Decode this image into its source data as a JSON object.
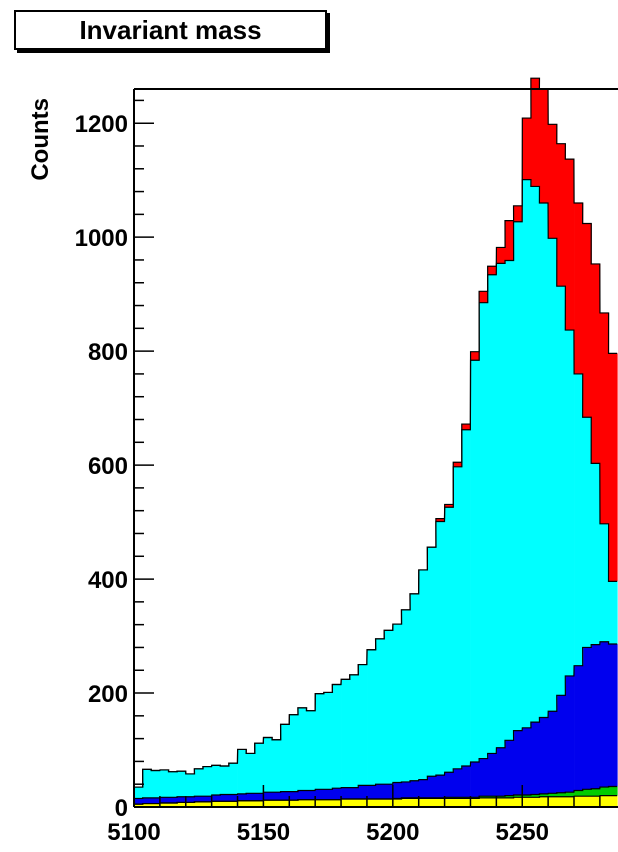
{
  "title": "Invariant mass",
  "chart_data": {
    "type": "area",
    "title": "Invariant mass",
    "xlabel": "",
    "ylabel": "Counts",
    "x_tick_labels": [
      "5100",
      "5150",
      "5200",
      "5250"
    ],
    "y_tick_labels": [
      "0",
      "200",
      "400",
      "600",
      "800",
      "1000",
      "1200"
    ],
    "xlim": [
      5100,
      5287
    ],
    "ylim": [
      0,
      1260
    ],
    "bin_width": 3.33,
    "x": [
      5101.7,
      5105.0,
      5108.3,
      5111.7,
      5115.0,
      5118.3,
      5121.7,
      5125.0,
      5128.3,
      5131.7,
      5135.0,
      5138.3,
      5141.7,
      5145.0,
      5148.3,
      5151.7,
      5155.0,
      5158.3,
      5161.7,
      5165.0,
      5168.3,
      5171.7,
      5175.0,
      5178.3,
      5181.7,
      5185.0,
      5188.3,
      5191.7,
      5195.0,
      5198.3,
      5201.7,
      5205.0,
      5208.3,
      5211.7,
      5215.0,
      5218.3,
      5221.7,
      5225.0,
      5228.3,
      5231.7,
      5235.0,
      5238.3,
      5241.7,
      5245.0,
      5248.3,
      5251.7,
      5255.0,
      5258.3,
      5261.7,
      5265.0,
      5268.3,
      5271.7,
      5275.0,
      5278.3,
      5281.7,
      5285.0
    ],
    "stacked": true,
    "series": [
      {
        "color": "#ffff00",
        "values": [
          5,
          6,
          6,
          7,
          7,
          8,
          8,
          9,
          9,
          10,
          10,
          10,
          11,
          11,
          11,
          12,
          12,
          12,
          12,
          13,
          13,
          13,
          13,
          13,
          14,
          14,
          14,
          14,
          14,
          14,
          14,
          15,
          15,
          15,
          15,
          15,
          15,
          15,
          15,
          15,
          16,
          16,
          16,
          16,
          17,
          17,
          17,
          18,
          18,
          18,
          18,
          19,
          19,
          19,
          20,
          20
        ]
      },
      {
        "color": "#00cc00",
        "values": [
          0,
          0,
          0,
          0,
          0,
          0,
          0,
          0,
          0,
          0,
          0,
          0,
          0,
          0,
          0,
          0,
          0,
          0,
          0,
          0,
          0,
          0,
          0,
          0,
          0,
          0,
          0,
          0,
          0,
          0,
          1,
          1,
          1,
          1,
          1,
          1,
          2,
          2,
          2,
          2,
          3,
          3,
          3,
          4,
          4,
          4,
          5,
          5,
          6,
          7,
          8,
          10,
          12,
          13,
          15,
          16
        ]
      },
      {
        "color": "#0000ee",
        "values": [
          10,
          10,
          10,
          10,
          10,
          10,
          10,
          10,
          10,
          11,
          12,
          12,
          12,
          13,
          13,
          14,
          14,
          15,
          15,
          16,
          16,
          18,
          18,
          20,
          20,
          20,
          24,
          24,
          26,
          26,
          28,
          28,
          30,
          32,
          38,
          40,
          44,
          50,
          55,
          62,
          66,
          75,
          85,
          97,
          113,
          118,
          127,
          134,
          144,
          171,
          204,
          219,
          249,
          253,
          255,
          250
        ]
      },
      {
        "color": "#00ffff",
        "values": [
          20,
          50,
          48,
          48,
          45,
          45,
          40,
          48,
          52,
          52,
          50,
          55,
          78,
          70,
          88,
          96,
          92,
          118,
          135,
          145,
          140,
          168,
          170,
          182,
          190,
          198,
          212,
          238,
          255,
          270,
          278,
          302,
          328,
          368,
          402,
          445,
          465,
          530,
          590,
          705,
          800,
          840,
          850,
          842,
          893,
          962,
          940,
          903,
          830,
          718,
          607,
          512,
          404,
          318,
          207,
          110
        ]
      },
      {
        "color": "#ff0000",
        "values": [
          0,
          0,
          0,
          0,
          0,
          0,
          0,
          0,
          0,
          0,
          0,
          0,
          0,
          0,
          0,
          0,
          0,
          0,
          0,
          0,
          0,
          0,
          0,
          0,
          0,
          0,
          0,
          0,
          0,
          0,
          0,
          0,
          0,
          0,
          0,
          5,
          5,
          8,
          10,
          15,
          20,
          15,
          28,
          70,
          28,
          108,
          190,
          200,
          200,
          250,
          300,
          300,
          340,
          350,
          370,
          400
        ]
      }
    ],
    "legend": false,
    "grid": false
  }
}
